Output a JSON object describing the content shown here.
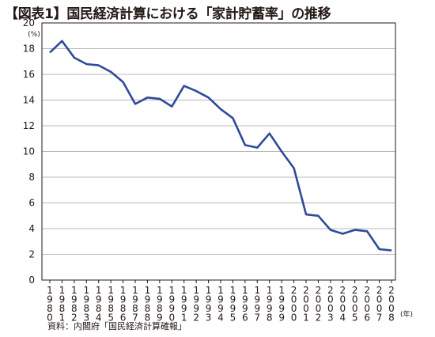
{
  "title": "【図表1】国民経済計算における「家計貯蓄率」の推移",
  "source": "資料：内閣府「国民経済計算確報」",
  "chart_data": {
    "type": "line",
    "title": "【図表1】国民経済計算における「家計貯蓄率」の推移",
    "y_unit": "(%)",
    "x_unit": "(年)",
    "ylim": [
      0,
      20
    ],
    "yticks": [
      0,
      2,
      4,
      6,
      8,
      10,
      12,
      14,
      16,
      18,
      20
    ],
    "grid": true,
    "line_color": "#2e4a9a",
    "x": [
      "1980",
      "1981",
      "1982",
      "1983",
      "1984",
      "1985",
      "1986",
      "1987",
      "1988",
      "1989",
      "1990",
      "1991",
      "1992",
      "1993",
      "1994",
      "1995",
      "1996",
      "1997",
      "1998",
      "1999",
      "2000",
      "2001",
      "2002",
      "2003",
      "2004",
      "2005",
      "2006",
      "2007",
      "2008"
    ],
    "series": [
      {
        "values": [
          17.7,
          18.6,
          17.3,
          16.8,
          16.7,
          16.2,
          15.4,
          13.7,
          14.2,
          14.1,
          13.5,
          15.1,
          14.7,
          14.2,
          13.3,
          12.6,
          10.5,
          10.3,
          11.4,
          10.0,
          8.7,
          5.1,
          5.0,
          3.9,
          3.6,
          3.9,
          3.8,
          2.4,
          2.3
        ]
      }
    ]
  }
}
